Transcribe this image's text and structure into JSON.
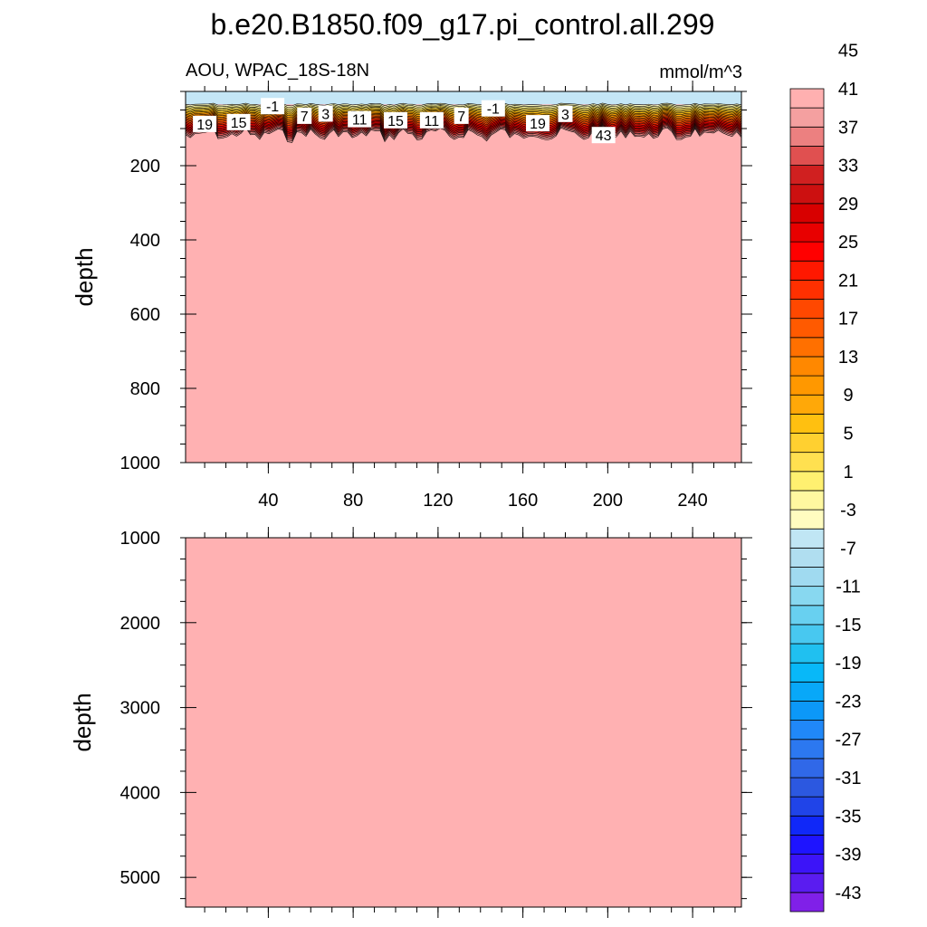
{
  "chart_data": {
    "type": "contour",
    "title": "b.e20.B1850.f09_g17.pi_control.all.299",
    "subtitle_left": "AOU, WPAC_18S-18N",
    "subtitle_right": "mmol/m^3",
    "xaxis": {
      "range": [
        1,
        263
      ],
      "ticks": [
        40,
        80,
        120,
        160,
        200,
        240
      ]
    },
    "panels": [
      {
        "name": "upper",
        "ylabel": "depth",
        "ylim": [
          0,
          1000
        ],
        "yticks": [
          200,
          400,
          600,
          800,
          1000
        ],
        "surface_layer": {
          "value_range": "-3 to 1",
          "depth": [
            0,
            35
          ]
        },
        "gradient_depth": [
          35,
          120
        ],
        "deep_value": ">45",
        "contour_labels": [
          {
            "text": "19",
            "x": 10,
            "depth": 90
          },
          {
            "text": "15",
            "x": 26,
            "depth": 85
          },
          {
            "text": "-1",
            "x": 42,
            "depth": 42
          },
          {
            "text": "7",
            "x": 57,
            "depth": 68
          },
          {
            "text": "3",
            "x": 67,
            "depth": 62
          },
          {
            "text": "11",
            "x": 83,
            "depth": 77
          },
          {
            "text": "15",
            "x": 100,
            "depth": 80
          },
          {
            "text": "11",
            "x": 117,
            "depth": 80
          },
          {
            "text": "7",
            "x": 131,
            "depth": 68
          },
          {
            "text": "-1",
            "x": 146,
            "depth": 48
          },
          {
            "text": "19",
            "x": 167,
            "depth": 88
          },
          {
            "text": "3",
            "x": 180,
            "depth": 63
          },
          {
            "text": "43",
            "x": 198,
            "depth": 120
          }
        ]
      },
      {
        "name": "lower",
        "ylabel": "depth",
        "ylim": [
          1000,
          5350
        ],
        "yticks": [
          1000,
          2000,
          3000,
          4000,
          5000
        ],
        "deep_value": ">45"
      }
    ],
    "colorbar": {
      "levels": [
        -45,
        -43,
        -41,
        -39,
        -37,
        -35,
        -33,
        -31,
        -29,
        -27,
        -25,
        -23,
        -21,
        -19,
        -17,
        -15,
        -13,
        -11,
        -9,
        -7,
        -5,
        -3,
        -1,
        1,
        3,
        5,
        7,
        9,
        11,
        13,
        15,
        17,
        19,
        21,
        23,
        25,
        27,
        29,
        31,
        33,
        35,
        37,
        39,
        41,
        43,
        45
      ],
      "labels": [
        "45",
        "41",
        "37",
        "33",
        "29",
        "25",
        "21",
        "17",
        "13",
        "9",
        "5",
        "1",
        "-3",
        "-7",
        "-11",
        "-15",
        "-19",
        "-23",
        "-27",
        "-31",
        "-35",
        "-39",
        "-43"
      ],
      "colors": [
        "#8020e8",
        "#5a1cf0",
        "#3c14f8",
        "#1e14ff",
        "#1028f8",
        "#2044e8",
        "#2c58e0",
        "#3068e8",
        "#2c78f0",
        "#2088f8",
        "#0c98f8",
        "#08a8f8",
        "#08b8f8",
        "#20c0f0",
        "#48c8f0",
        "#68d0f0",
        "#88d8f0",
        "#a0daf0",
        "#b0def0",
        "#c0e6f4",
        "#fffcc0",
        "#fff8a0",
        "#fff070",
        "#ffe050",
        "#ffd030",
        "#ffc010",
        "#ffa808",
        "#ff9800",
        "#ff8800",
        "#ff7000",
        "#ff5a00",
        "#ff4800",
        "#ff3000",
        "#ff1800",
        "#ff0000",
        "#e80000",
        "#d80000",
        "#cc1010",
        "#d02020",
        "#e05050",
        "#ec8080",
        "#f4a0a0",
        "#ffb0b0"
      ]
    },
    "colors": {
      "deep": "#ffb1b2",
      "surface": "#c4e6f6"
    }
  }
}
